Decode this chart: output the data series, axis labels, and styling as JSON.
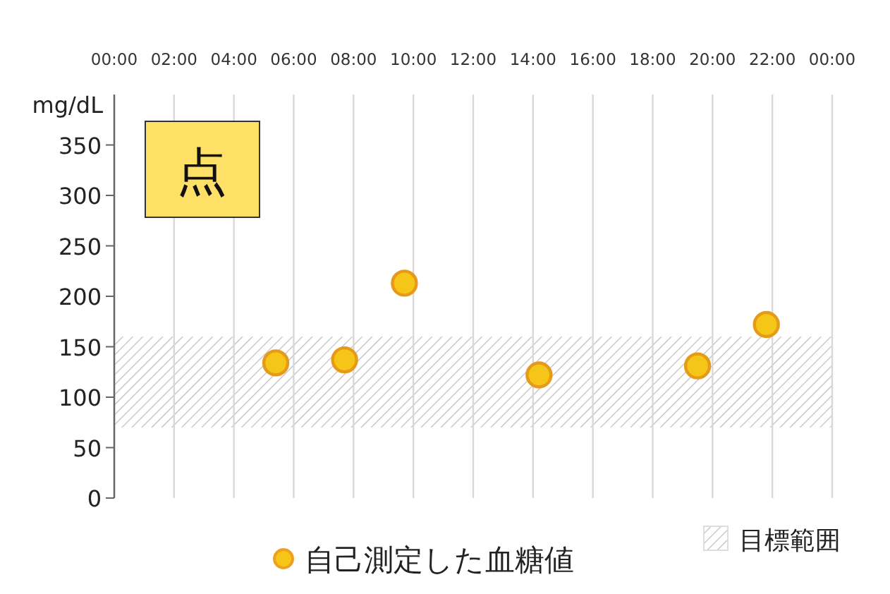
{
  "chart_data": {
    "type": "scatter",
    "ylabel": "mg/dL",
    "annotations": [
      "点"
    ],
    "x": [
      5.4,
      7.7,
      9.7,
      14.2,
      19.5,
      21.8
    ],
    "series": [
      {
        "name": "自己測定した血糖値",
        "color": "#f5c518",
        "values": [
          134,
          137,
          213,
          122,
          131,
          172
        ]
      }
    ],
    "xlim": [
      0,
      24
    ],
    "xticks": [
      {
        "value": 0,
        "label": "00:00"
      },
      {
        "value": 2,
        "label": "02:00"
      },
      {
        "value": 4,
        "label": "04:00"
      },
      {
        "value": 6,
        "label": "06:00"
      },
      {
        "value": 8,
        "label": "08:00"
      },
      {
        "value": 10,
        "label": "10:00"
      },
      {
        "value": 12,
        "label": "12:00"
      },
      {
        "value": 14,
        "label": "14:00"
      },
      {
        "value": 16,
        "label": "16:00"
      },
      {
        "value": 18,
        "label": "18:00"
      },
      {
        "value": 20,
        "label": "20:00"
      },
      {
        "value": 22,
        "label": "22:00"
      },
      {
        "value": 24,
        "label": "00:00"
      }
    ],
    "ylim": [
      0,
      400
    ],
    "yticks": [
      0,
      50,
      100,
      150,
      200,
      250,
      300,
      350
    ],
    "bands": [
      {
        "axis": "y",
        "from": 70,
        "to": 160,
        "label": "目標範囲",
        "color": "#bbbbbb"
      }
    ],
    "grid": "x",
    "legend": "bottom",
    "marker": "circle"
  }
}
